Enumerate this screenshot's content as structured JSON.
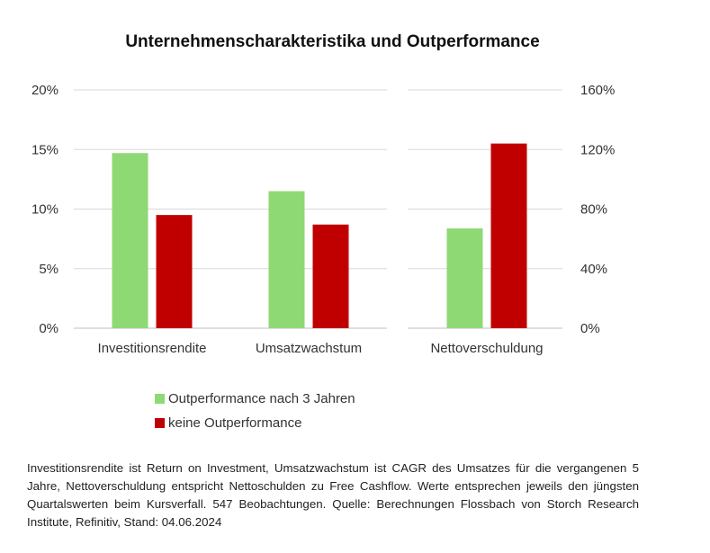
{
  "chart_data": {
    "type": "bar",
    "title": "Unternehmenscharakteristika und Outperformance",
    "categories": [
      "Investitionsrendite",
      "Umsatzwachstum",
      "Nettoverschuldung"
    ],
    "series": [
      {
        "name": "Outperformance nach 3 Jahren",
        "color": "#8fd974",
        "values": [
          14.7,
          11.5,
          67
        ]
      },
      {
        "name": "keine Outperformance",
        "color": "#c00000",
        "values": [
          9.5,
          8.7,
          124
        ]
      }
    ],
    "axis_assignment": [
      "left",
      "left",
      "right"
    ],
    "y_left": {
      "ticks": [
        "0%",
        "5%",
        "10%",
        "15%",
        "20%"
      ],
      "ylim": [
        0,
        20
      ]
    },
    "y_right": {
      "ticks": [
        "0%",
        "40%",
        "80%",
        "120%",
        "160%"
      ],
      "ylim": [
        0,
        160
      ]
    },
    "grid": true,
    "legend_position": "bottom-left"
  },
  "footnote": "Investitionsrendite ist Return on Investment, Umsatzwachstum ist CAGR des Umsatzes für die vergangenen 5 Jahre, Nettoverschuldung entspricht Nettoschulden zu Free Cashflow. Werte entsprechen jeweils den jüngsten Quartalswerten beim Kursverfall. 547 Beobachtungen. Quelle: Berechnungen Flossbach von Storch Research Institute, Refinitiv, Stand: 04.06.2024"
}
